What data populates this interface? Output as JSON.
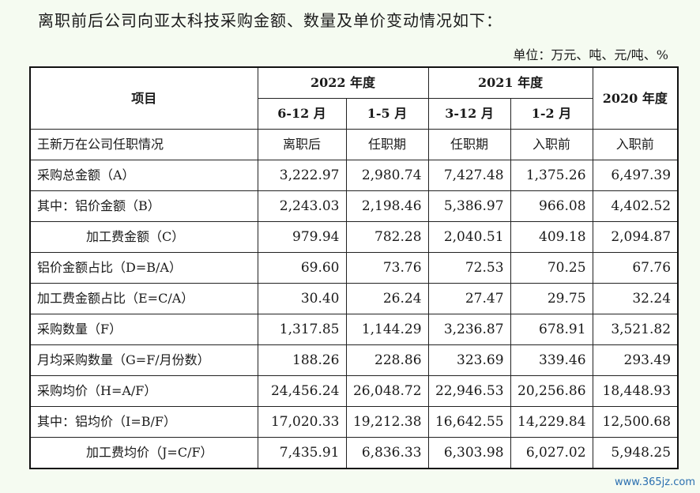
{
  "title": "离职前后公司向亚太科技采购金额、数量及单价变动情况如下：",
  "unit": "单位：万元、吨、元/吨、%",
  "table": {
    "header": {
      "item": "项目",
      "y2022": "2022 年度",
      "y2021": "2021 年度",
      "y2020": "2020 年度",
      "p1": "6-12 月",
      "p2": "1-5 月",
      "p3": "3-12 月",
      "p4": "1-2 月"
    },
    "rows": [
      {
        "label": "王新万在公司任职情况",
        "indent": false,
        "center": true,
        "values": [
          "离职后",
          "任职期",
          "任职期",
          "入职前",
          "入职前"
        ]
      },
      {
        "label": "采购总金额（A）",
        "indent": false,
        "center": false,
        "values": [
          "3,222.97",
          "2,980.74",
          "7,427.48",
          "1,375.26",
          "6,497.39"
        ]
      },
      {
        "label": "其中：铝价金额（B）",
        "indent": false,
        "center": false,
        "values": [
          "2,243.03",
          "2,198.46",
          "5,386.97",
          "966.08",
          "4,402.52"
        ]
      },
      {
        "label": "加工费金额（C）",
        "indent": true,
        "center": false,
        "values": [
          "979.94",
          "782.28",
          "2,040.51",
          "409.18",
          "2,094.87"
        ]
      },
      {
        "label": "铝价金额占比（D=B/A）",
        "indent": false,
        "center": false,
        "values": [
          "69.60",
          "73.76",
          "72.53",
          "70.25",
          "67.76"
        ]
      },
      {
        "label": "加工费金额占比（E=C/A）",
        "indent": false,
        "center": false,
        "values": [
          "30.40",
          "26.24",
          "27.47",
          "29.75",
          "32.24"
        ]
      },
      {
        "label": "采购数量（F）",
        "indent": false,
        "center": false,
        "values": [
          "1,317.85",
          "1,144.29",
          "3,236.87",
          "678.91",
          "3,521.82"
        ]
      },
      {
        "label": "月均采购数量（G=F/月份数）",
        "indent": false,
        "center": false,
        "values": [
          "188.26",
          "228.86",
          "323.69",
          "339.46",
          "293.49"
        ]
      },
      {
        "label": "采购均价（H=A/F）",
        "indent": false,
        "center": false,
        "values": [
          "24,456.24",
          "26,048.72",
          "22,946.53",
          "20,256.86",
          "18,448.93"
        ]
      },
      {
        "label": "其中：铝均价（I=B/F）",
        "indent": false,
        "center": false,
        "values": [
          "17,020.33",
          "19,212.38",
          "16,642.55",
          "14,229.84",
          "12,500.68"
        ]
      },
      {
        "label": "加工费均价（J=C/F）",
        "indent": true,
        "center": false,
        "values": [
          "7,435.91",
          "6,836.33",
          "6,303.98",
          "6,027.02",
          "5,948.25"
        ]
      }
    ]
  },
  "watermark": "www.365jz.com"
}
